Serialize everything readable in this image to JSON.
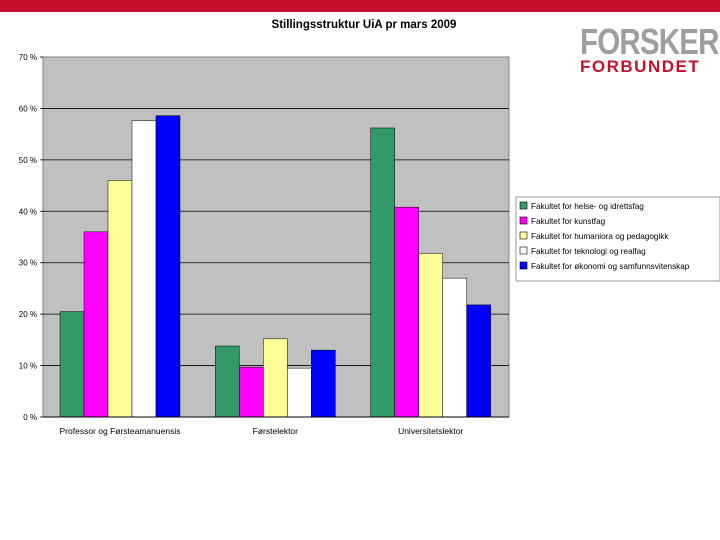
{
  "brand": {
    "line1": "FORSKER",
    "line2": "FORBUNDET",
    "top_bar_color": "#c8102e",
    "line1_color": "#9e9e9e",
    "line2_color": "#c8102e"
  },
  "chart_data": {
    "type": "bar",
    "title": "Stillingsstruktur UiA pr mars 2009",
    "xlabel": "",
    "ylabel": "",
    "categories": [
      "Professor og Førsteamanuensis",
      "Førstelektor",
      "Universitetslektor"
    ],
    "ylim": [
      0,
      70
    ],
    "yticks": [
      0,
      10,
      20,
      30,
      40,
      50,
      60,
      70
    ],
    "ytick_suffix": " %",
    "grid": true,
    "legend_position": "right",
    "series": [
      {
        "name": "Fakultet for helse- og idrettsfag",
        "color": "#339966",
        "values": [
          20.5,
          13.8,
          56.2
        ]
      },
      {
        "name": "Fakultet for kunstfag",
        "color": "#ff00ff",
        "values": [
          36.0,
          9.7,
          40.8
        ]
      },
      {
        "name": "Fakultet for humaniora og pedagogikk",
        "color": "#ffff99",
        "values": [
          46.0,
          15.2,
          31.8
        ]
      },
      {
        "name": "Fakultet for teknologi og realfag",
        "color": "#ffffff",
        "values": [
          57.6,
          9.5,
          27.0
        ]
      },
      {
        "name": "Fakultet for økonomi og samfunnsvitenskap",
        "color": "#0000ff",
        "values": [
          58.6,
          13.0,
          21.8
        ]
      }
    ]
  }
}
